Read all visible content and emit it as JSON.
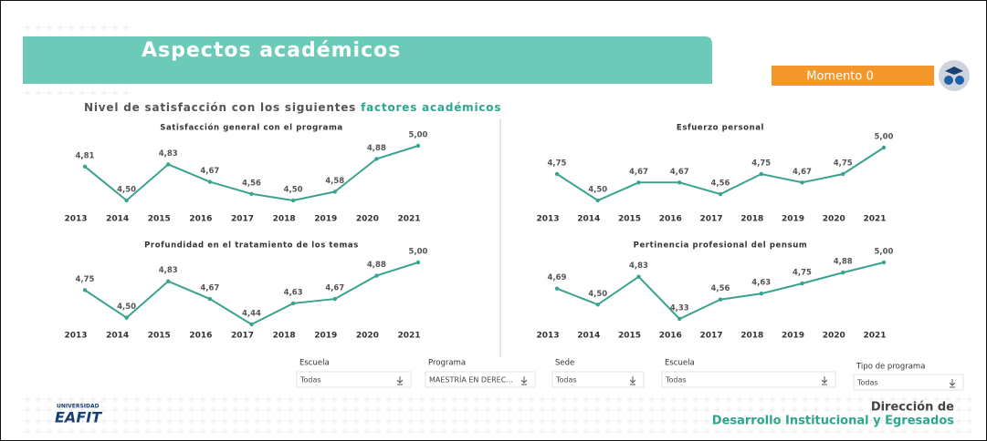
{
  "header": {
    "title": "Aspectos académicos",
    "moment": "Momento 0",
    "subtitle_prefix": "Nivel de satisfacción con los siguientes",
    "subtitle_highlight": "factores académicos"
  },
  "chart_data": [
    {
      "type": "line",
      "title": "Satisfacción general con el programa",
      "color": "#3aa38f",
      "categories": [
        "2013",
        "2014",
        "2015",
        "2016",
        "2017",
        "2018",
        "2019",
        "2020",
        "2021"
      ],
      "values": [
        4.81,
        4.5,
        4.83,
        4.67,
        4.56,
        4.5,
        4.58,
        4.88,
        5.0
      ],
      "value_labels": [
        "4,81",
        "4,50",
        "4,83",
        "4,67",
        "4,56",
        "4,50",
        "4,58",
        "4,88",
        "5,00"
      ]
    },
    {
      "type": "line",
      "title": "Esfuerzo personal",
      "color": "#3aa38f",
      "categories": [
        "2013",
        "2014",
        "2015",
        "2016",
        "2017",
        "2018",
        "2019",
        "2020",
        "2021"
      ],
      "values": [
        4.75,
        4.5,
        4.67,
        4.67,
        4.56,
        4.75,
        4.67,
        4.75,
        5.0
      ],
      "value_labels": [
        "4,75",
        "4,50",
        "4,67",
        "4,67",
        "4,56",
        "4,75",
        "4,67",
        "4,75",
        "5,00"
      ]
    },
    {
      "type": "line",
      "title": "Profundidad en el tratamiento de los temas",
      "color": "#3aa38f",
      "categories": [
        "2013",
        "2014",
        "2015",
        "2016",
        "2017",
        "2018",
        "2019",
        "2020",
        "2021"
      ],
      "values": [
        4.75,
        4.5,
        4.83,
        4.67,
        4.44,
        4.63,
        4.67,
        4.88,
        5.0
      ],
      "value_labels": [
        "4,75",
        "4,50",
        "4,83",
        "4,67",
        "4,44",
        "4,63",
        "4,67",
        "4,88",
        "5,00"
      ]
    },
    {
      "type": "line",
      "title": "Pertinencia profesional del pensum",
      "color": "#3aa38f",
      "categories": [
        "2013",
        "2014",
        "2015",
        "2016",
        "2017",
        "2018",
        "2019",
        "2020",
        "2021"
      ],
      "values": [
        4.69,
        4.5,
        4.83,
        4.33,
        4.56,
        4.63,
        4.75,
        4.88,
        5.0
      ],
      "value_labels": [
        "4,69",
        "4,50",
        "4,83",
        "4,33",
        "4,56",
        "4,63",
        "4,75",
        "4,88",
        "5,00"
      ]
    }
  ],
  "filters": [
    {
      "label": "Escuela",
      "value": "Todas"
    },
    {
      "label": "Programa",
      "value": "MAESTRÍA EN DEREC..."
    },
    {
      "label": "Sede",
      "value": "Todas"
    },
    {
      "label": "Escuela",
      "value": "Todas"
    },
    {
      "label": "Tipo de programa",
      "value": "Todas"
    }
  ],
  "footer": {
    "logo_top": "UNIVERSIDAD",
    "logo": "EAFIT",
    "line1": "Dirección de",
    "line2": "Desarrollo Institucional y Egresados"
  }
}
